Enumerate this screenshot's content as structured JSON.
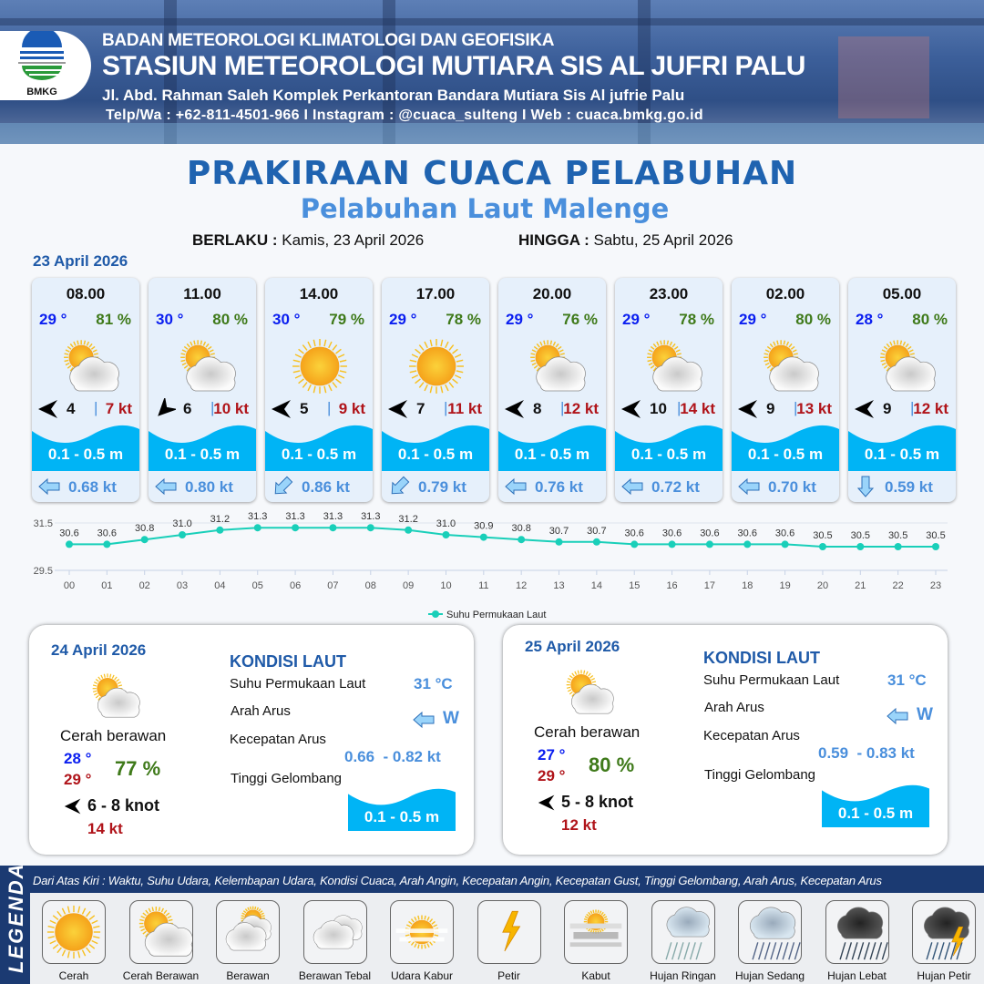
{
  "header": {
    "agency": "BADAN METEOROLOGI KLIMATOLOGI DAN GEOFISIKA",
    "station": "STASIUN METEOROLOGI MUTIARA SIS AL JUFRI PALU",
    "address": "Jl. Abd. Rahman Saleh Komplek Perkantoran Bandara Mutiara Sis Al jufrie Palu",
    "contact": "Telp/Wa : +62-811-4501-966  I  Instagram : @cuaca_sulteng  I  Web : cuaca.bmkg.go.id",
    "logo_text": "BMKG"
  },
  "title": "PRAKIRAAN CUACA PELABUHAN",
  "subtitle": "Pelabuhan Laut Malenge",
  "validity": {
    "from_label": "BERLAKU :",
    "from_value": "Kamis, 23 April 2026",
    "to_label": "HINGGA :",
    "to_value": "Sabtu, 25 April 2026"
  },
  "day1_label": "23 April 2026",
  "hourly": [
    {
      "time": "08.00",
      "temp": "29 °",
      "rh": "81 %",
      "weather": "cerah-berawan",
      "wind_dir": "W",
      "wind": "4",
      "gust": "7 kt",
      "wave": "0.1 - 0.5 m",
      "current_dir": "W",
      "current": "0.68 kt"
    },
    {
      "time": "11.00",
      "temp": "30 °",
      "rh": "80 %",
      "weather": "cerah-berawan",
      "wind_dir": "SW",
      "wind": "6",
      "gust": "10 kt",
      "wave": "0.1 - 0.5 m",
      "current_dir": "W",
      "current": "0.80 kt"
    },
    {
      "time": "14.00",
      "temp": "30 °",
      "rh": "79 %",
      "weather": "cerah",
      "wind_dir": "W",
      "wind": "5",
      "gust": "9 kt",
      "wave": "0.1 - 0.5 m",
      "current_dir": "SW",
      "current": "0.86 kt"
    },
    {
      "time": "17.00",
      "temp": "29 °",
      "rh": "78 %",
      "weather": "cerah",
      "wind_dir": "W",
      "wind": "7",
      "gust": "11 kt",
      "wave": "0.1 - 0.5 m",
      "current_dir": "SW",
      "current": "0.79 kt"
    },
    {
      "time": "20.00",
      "temp": "29 °",
      "rh": "76 %",
      "weather": "cerah-berawan",
      "wind_dir": "W",
      "wind": "8",
      "gust": "12 kt",
      "wave": "0.1 - 0.5 m",
      "current_dir": "W",
      "current": "0.76 kt"
    },
    {
      "time": "23.00",
      "temp": "29 °",
      "rh": "78 %",
      "weather": "cerah-berawan",
      "wind_dir": "W",
      "wind": "10",
      "gust": "14 kt",
      "wave": "0.1 - 0.5 m",
      "current_dir": "W",
      "current": "0.72 kt"
    },
    {
      "time": "02.00",
      "temp": "29 °",
      "rh": "80 %",
      "weather": "cerah-berawan",
      "wind_dir": "W",
      "wind": "9",
      "gust": "13 kt",
      "wave": "0.1 - 0.5 m",
      "current_dir": "W",
      "current": "0.70 kt"
    },
    {
      "time": "05.00",
      "temp": "28 °",
      "rh": "80 %",
      "weather": "cerah-berawan",
      "wind_dir": "W",
      "wind": "9",
      "gust": "12 kt",
      "wave": "0.1 - 0.5 m",
      "current_dir": "S",
      "current": "0.59 kt"
    }
  ],
  "chart_data": {
    "type": "line",
    "x": [
      "00",
      "01",
      "02",
      "03",
      "04",
      "05",
      "06",
      "07",
      "08",
      "09",
      "10",
      "11",
      "12",
      "13",
      "14",
      "15",
      "16",
      "17",
      "18",
      "19",
      "20",
      "21",
      "22",
      "23"
    ],
    "series": [
      {
        "name": "Suhu Permukaan Laut",
        "values": [
          30.6,
          30.6,
          30.8,
          31.0,
          31.2,
          31.3,
          31.3,
          31.3,
          31.3,
          31.2,
          31.0,
          30.9,
          30.8,
          30.7,
          30.7,
          30.6,
          30.6,
          30.6,
          30.6,
          30.6,
          30.5,
          30.5,
          30.5,
          30.5
        ],
        "color": "#19cfb9"
      }
    ],
    "yticks": [
      "31.5",
      "29.5"
    ],
    "ylim": [
      29.5,
      31.5
    ],
    "grid": true,
    "legend": "bottom-center",
    "data_labels": true
  },
  "daily": [
    {
      "date": "24 April 2026",
      "weather": "cerah-berawan",
      "condition": "Cerah berawan",
      "tmin": "28 °",
      "tmax": "29 °",
      "rh": "77 %",
      "wind_dir": "W",
      "wind": "6  - 8 knot",
      "gust": "14 kt",
      "sea": {
        "title": "KONDISI LAUT",
        "sst_label": "Suhu Permukaan Laut",
        "sst": "31 °C",
        "dir_label": "Arah Arus",
        "dir": "W",
        "speed_label": "Kecepatan Arus",
        "speed": "0.66  - 0.82 kt",
        "wave_label": "Tinggi Gelombang",
        "wave": "0.1 - 0.5 m"
      }
    },
    {
      "date": "25 April 2026",
      "weather": "cerah-berawan",
      "condition": "Cerah berawan",
      "tmin": "27 °",
      "tmax": "29 °",
      "rh": "80 %",
      "wind_dir": "W",
      "wind": "5  - 8 knot",
      "gust": "12 kt",
      "sea": {
        "title": "KONDISI LAUT",
        "sst_label": "Suhu Permukaan Laut",
        "sst": "31 °C",
        "dir_label": "Arah Arus",
        "dir": "W",
        "speed_label": "Kecepatan Arus",
        "speed": "0.59  - 0.83 kt",
        "wave_label": "Tinggi Gelombang",
        "wave": "0.1 - 0.5 m"
      }
    }
  ],
  "legend": {
    "title": "LEGENDA",
    "description": "Dari Atas Kiri : Waktu, Suhu Udara, Kelembapan Udara, Kondisi Cuaca, Arah Angin, Kecepatan Angin, Kecepatan Gust, Tinggi Gelombang, Arah Arus, Kecepatan Arus",
    "items": [
      {
        "label": "Cerah",
        "icon": "cerah"
      },
      {
        "label": "Cerah Berawan",
        "icon": "cerah-berawan"
      },
      {
        "label": "Berawan",
        "icon": "berawan"
      },
      {
        "label": "Berawan Tebal",
        "icon": "berawan-tebal"
      },
      {
        "label": "Udara Kabur",
        "icon": "udara-kabur"
      },
      {
        "label": "Petir",
        "icon": "petir"
      },
      {
        "label": "Kabut",
        "icon": "kabut"
      },
      {
        "label": "Hujan Ringan",
        "icon": "hujan-ringan"
      },
      {
        "label": "Hujan Sedang",
        "icon": "hujan-sedang"
      },
      {
        "label": "Hujan Lebat",
        "icon": "hujan-lebat"
      },
      {
        "label": "Hujan Petir",
        "icon": "hujan-petir"
      }
    ]
  },
  "colors": {
    "brand": "#1f63b0",
    "temp": "#0a1ef0",
    "humidity": "#3f7a1a",
    "gust": "#b0141a",
    "wave": "#00b4f5",
    "current": "#4a8fdc",
    "line": "#19cfb9",
    "legend_bg": "#1b3a72"
  }
}
